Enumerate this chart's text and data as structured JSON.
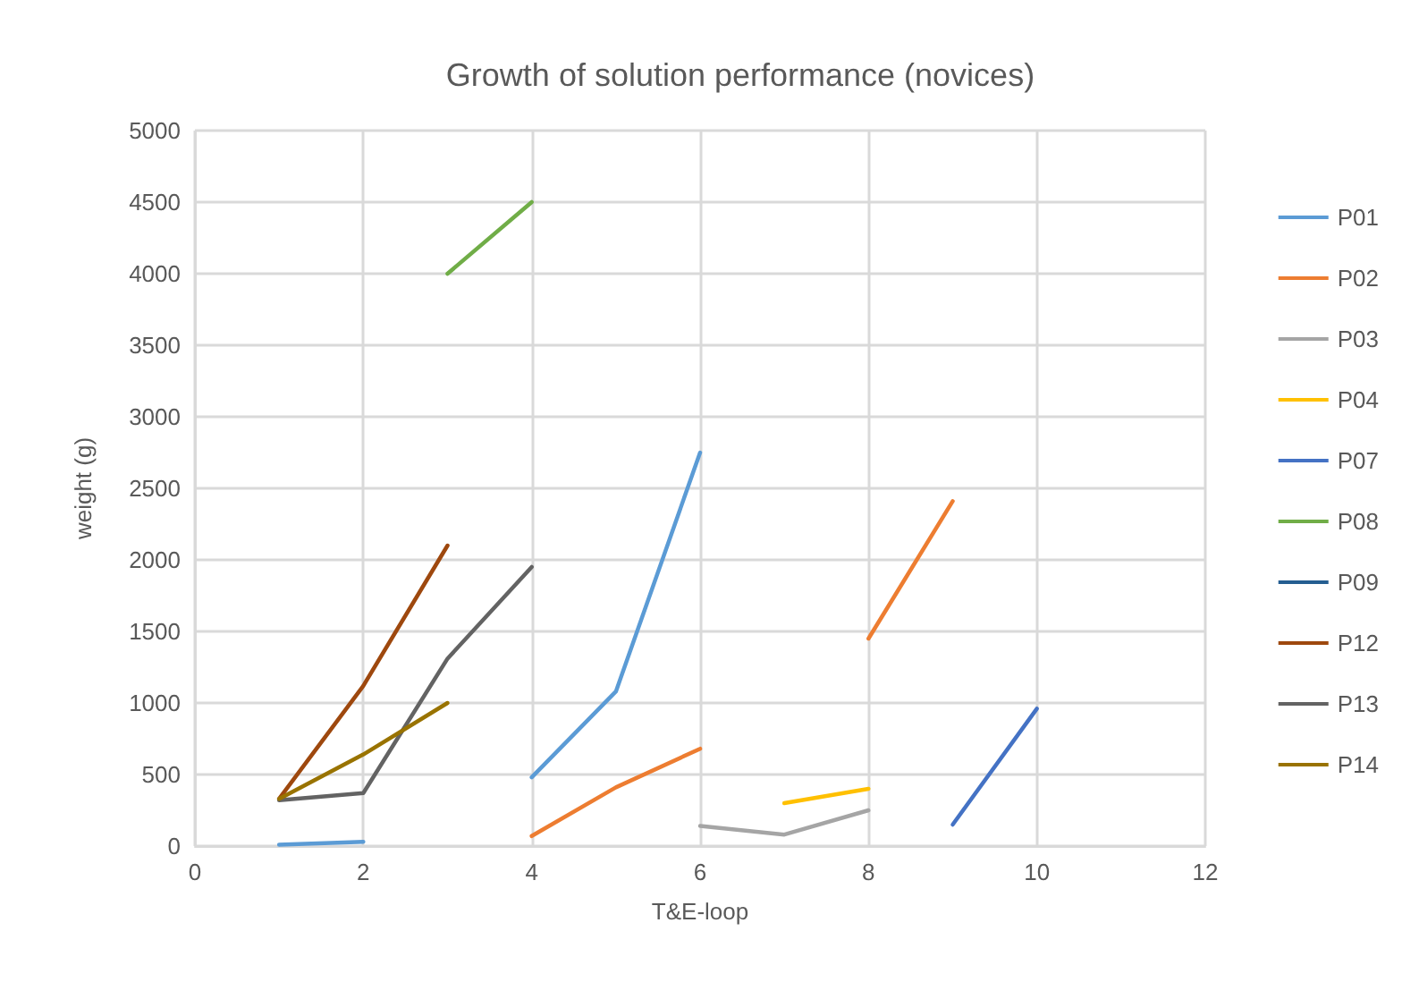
{
  "chart_data": {
    "type": "line",
    "title": "Growth of solution performance (novices)",
    "xlabel": "T&E-loop",
    "ylabel": "weight (g)",
    "xlim": [
      0,
      12
    ],
    "xticks": [
      0,
      2,
      4,
      6,
      8,
      10,
      12
    ],
    "ylim": [
      0,
      5000
    ],
    "yticks": [
      0,
      500,
      1000,
      1500,
      2000,
      2500,
      3000,
      3500,
      4000,
      4500,
      5000
    ],
    "grid": true,
    "legend": "right",
    "marker": "none",
    "line_style": "solid",
    "series": [
      {
        "name": "P01",
        "color": "#5b9bd5",
        "x": [
          1,
          2,
          3,
          4,
          5,
          6
        ],
        "values": [
          10,
          30,
          null,
          480,
          1080,
          2750
        ]
      },
      {
        "name": "P02",
        "color": "#ed7d31",
        "x": [
          4,
          5,
          6,
          7,
          8,
          9
        ],
        "values": [
          70,
          410,
          680,
          null,
          1450,
          2410
        ]
      },
      {
        "name": "P03",
        "color": "#a5a5a5",
        "x": [
          6,
          7,
          8
        ],
        "values": [
          140,
          80,
          250
        ]
      },
      {
        "name": "P04",
        "color": "#ffc000",
        "x": [
          7,
          8
        ],
        "values": [
          300,
          400
        ]
      },
      {
        "name": "P07",
        "color": "#4472c4",
        "x": [
          9,
          10
        ],
        "values": [
          150,
          960
        ]
      },
      {
        "name": "P08",
        "color": "#70ad47",
        "x": [
          3,
          4
        ],
        "values": [
          4000,
          4500
        ]
      },
      {
        "name": "P09",
        "color": "#255e91"
      },
      {
        "name": "P12",
        "color": "#9e480e",
        "x": [
          1,
          2,
          3
        ],
        "values": [
          330,
          1120,
          2100
        ]
      },
      {
        "name": "P13",
        "color": "#636363",
        "x": [
          1,
          2,
          3,
          4
        ],
        "values": [
          320,
          370,
          1310,
          1950
        ]
      },
      {
        "name": "P14",
        "color": "#997300",
        "x": [
          1,
          2,
          3
        ],
        "values": [
          330,
          640,
          1000
        ]
      }
    ]
  }
}
